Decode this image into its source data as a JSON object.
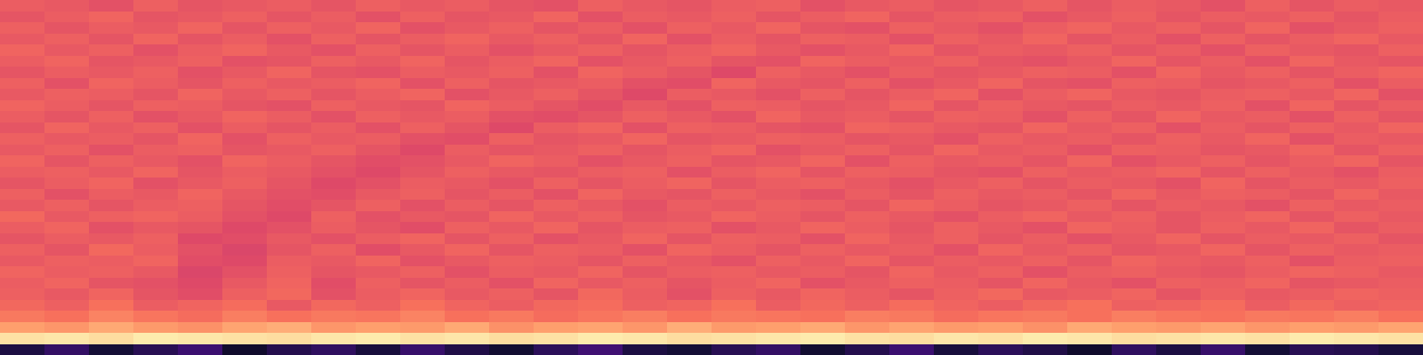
{
  "chart_data": {
    "type": "heatmap",
    "tick_labels": false,
    "zlim": [
      0,
      100
    ],
    "z": [
      [
        12,
        18,
        10,
        15,
        20,
        8,
        14,
        17,
        11,
        19,
        13,
        9,
        16,
        21,
        12,
        10,
        15,
        18,
        9,
        14,
        20,
        11,
        16,
        13,
        8,
        17,
        12,
        19,
        10,
        15,
        14,
        11
      ],
      [
        94,
        95,
        93,
        96,
        95,
        94,
        93,
        95,
        96,
        94,
        95,
        93,
        94,
        96,
        95,
        93,
        94,
        95,
        96,
        94,
        93,
        95,
        94,
        96,
        95,
        93,
        94,
        95,
        94,
        96,
        95,
        94
      ],
      [
        80,
        78,
        82,
        79,
        77,
        81,
        83,
        78,
        80,
        79,
        82,
        77,
        80,
        81,
        78,
        83,
        79,
        80,
        82,
        78,
        81,
        79,
        80,
        77,
        82,
        80,
        79,
        81,
        78,
        80,
        79,
        81
      ],
      [
        72,
        70,
        74,
        71,
        69,
        73,
        70,
        72,
        71,
        74,
        70,
        72,
        69,
        71,
        73,
        70,
        72,
        71,
        70,
        73,
        72,
        69,
        71,
        72,
        70,
        73,
        71,
        70,
        72,
        71,
        73,
        70
      ],
      [
        68,
        66,
        70,
        65,
        67,
        69,
        64,
        68,
        66,
        70,
        67,
        65,
        68,
        69,
        66,
        67,
        70,
        65,
        68,
        66,
        69,
        67,
        65,
        68,
        70,
        66,
        67,
        69,
        65,
        68,
        66,
        67
      ],
      [
        66,
        64,
        67,
        63,
        61,
        66,
        68,
        62,
        65,
        67,
        64,
        66,
        63,
        68,
        65,
        62,
        66,
        64,
        67,
        65,
        63,
        66,
        68,
        64,
        65,
        67,
        63,
        66,
        64,
        65,
        67,
        66
      ],
      [
        65,
        67,
        63,
        62,
        60,
        64,
        67,
        61,
        66,
        63,
        65,
        62,
        67,
        64,
        66,
        63,
        65,
        67,
        62,
        64,
        66,
        65,
        63,
        67,
        64,
        62,
        66,
        65,
        67,
        63,
        64,
        65
      ],
      [
        67,
        65,
        66,
        64,
        59,
        62,
        66,
        63,
        64,
        66,
        62,
        65,
        64,
        67,
        63,
        65,
        66,
        64,
        65,
        63,
        67,
        64,
        66,
        62,
        65,
        66,
        64,
        63,
        65,
        67,
        66,
        64
      ],
      [
        64,
        66,
        65,
        67,
        61,
        60,
        65,
        64,
        67,
        62,
        64,
        66,
        65,
        63,
        66,
        64,
        62,
        66,
        64,
        67,
        63,
        65,
        64,
        66,
        63,
        67,
        65,
        64,
        66,
        62,
        65,
        66
      ],
      [
        66,
        63,
        68,
        65,
        62,
        59,
        63,
        66,
        61,
        64,
        67,
        63,
        66,
        65,
        62,
        67,
        65,
        63,
        66,
        64,
        65,
        62,
        67,
        64,
        66,
        63,
        64,
        67,
        63,
        66,
        64,
        65
      ],
      [
        63,
        65,
        64,
        66,
        60,
        61,
        64,
        62,
        65,
        67,
        63,
        66,
        62,
        64,
        67,
        63,
        66,
        65,
        62,
        67,
        64,
        66,
        63,
        65,
        62,
        64,
        67,
        63,
        65,
        64,
        66,
        63
      ],
      [
        65,
        67,
        62,
        64,
        63,
        60,
        62,
        65,
        63,
        61,
        66,
        64,
        67,
        63,
        65,
        66,
        62,
        64,
        67,
        65,
        63,
        66,
        64,
        62,
        67,
        65,
        63,
        66,
        64,
        67,
        63,
        65
      ],
      [
        68,
        64,
        66,
        67,
        65,
        62,
        60,
        66,
        62,
        64,
        63,
        67,
        64,
        66,
        63,
        64,
        67,
        65,
        63,
        66,
        64,
        62,
        65,
        67,
        64,
        66,
        63,
        65,
        67,
        63,
        66,
        64
      ],
      [
        64,
        66,
        63,
        65,
        66,
        63,
        61,
        63,
        66,
        62,
        65,
        63,
        66,
        64,
        62,
        65,
        64,
        66,
        65,
        63,
        67,
        65,
        63,
        64,
        66,
        63,
        65,
        64,
        62,
        66,
        64,
        65
      ],
      [
        66,
        62,
        65,
        64,
        67,
        64,
        62,
        61,
        64,
        66,
        63,
        65,
        62,
        67,
        64,
        63,
        66,
        64,
        62,
        65,
        63,
        66,
        64,
        65,
        63,
        67,
        64,
        66,
        65,
        63,
        67,
        64
      ],
      [
        63,
        65,
        67,
        62,
        64,
        66,
        63,
        60,
        62,
        65,
        64,
        62,
        66,
        63,
        65,
        67,
        63,
        65,
        66,
        64,
        62,
        64,
        66,
        63,
        65,
        64,
        62,
        67,
        63,
        65,
        64,
        66
      ],
      [
        65,
        66,
        64,
        67,
        63,
        65,
        64,
        62,
        60,
        63,
        66,
        64,
        63,
        65,
        66,
        62,
        65,
        67,
        63,
        66,
        65,
        63,
        62,
        66,
        64,
        65,
        67,
        63,
        66,
        64,
        62,
        65
      ],
      [
        67,
        63,
        66,
        64,
        62,
        67,
        65,
        63,
        61,
        62,
        64,
        67,
        65,
        62,
        64,
        66,
        63,
        64,
        67,
        62,
        66,
        64,
        65,
        63,
        67,
        62,
        64,
        66,
        63,
        65,
        67,
        63
      ],
      [
        64,
        66,
        62,
        65,
        66,
        63,
        64,
        66,
        63,
        60,
        65,
        63,
        64,
        66,
        63,
        65,
        67,
        62,
        64,
        66,
        63,
        67,
        64,
        65,
        62,
        66,
        65,
        63,
        64,
        67,
        63,
        66
      ],
      [
        66,
        64,
        65,
        63,
        67,
        62,
        66,
        64,
        65,
        62,
        61,
        66,
        63,
        64,
        67,
        63,
        64,
        66,
        65,
        63,
        64,
        62,
        66,
        64,
        65,
        63,
        66,
        64,
        67,
        62,
        65,
        64
      ],
      [
        63,
        67,
        64,
        66,
        62,
        65,
        63,
        65,
        62,
        66,
        63,
        60,
        65,
        67,
        62,
        66,
        65,
        63,
        62,
        67,
        66,
        64,
        63,
        67,
        64,
        66,
        62,
        65,
        63,
        66,
        64,
        67
      ],
      [
        65,
        63,
        66,
        62,
        64,
        67,
        65,
        62,
        66,
        64,
        65,
        62,
        61,
        63,
        66,
        64,
        62,
        67,
        64,
        65,
        63,
        66,
        65,
        62,
        66,
        63,
        67,
        64,
        65,
        62,
        66,
        63
      ],
      [
        67,
        65,
        63,
        66,
        65,
        63,
        62,
        66,
        64,
        63,
        67,
        65,
        63,
        61,
        64,
        62,
        66,
        65,
        63,
        64,
        67,
        63,
        66,
        64,
        63,
        65,
        64,
        66,
        62,
        67,
        63,
        65
      ],
      [
        64,
        66,
        65,
        63,
        67,
        64,
        66,
        63,
        65,
        67,
        62,
        64,
        66,
        63,
        60,
        65,
        64,
        62,
        66,
        63,
        65,
        67,
        62,
        65,
        67,
        64,
        63,
        65,
        66,
        64,
        67,
        62
      ],
      [
        66,
        62,
        67,
        65,
        63,
        66,
        64,
        65,
        67,
        62,
        66,
        63,
        64,
        65,
        62,
        61,
        67,
        64,
        63,
        66,
        62,
        64,
        67,
        63,
        62,
        66,
        65,
        63,
        64,
        66,
        62,
        65
      ],
      [
        63,
        65,
        64,
        66,
        62,
        64,
        67,
        63,
        62,
        65,
        64,
        66,
        62,
        67,
        65,
        63,
        60,
        66,
        64,
        62,
        65,
        63,
        64,
        66,
        65,
        62,
        67,
        64,
        66,
        63,
        65,
        67
      ],
      [
        65,
        67,
        63,
        64,
        66,
        62,
        63,
        66,
        64,
        67,
        63,
        65,
        67,
        62,
        64,
        66,
        63,
        62,
        67,
        65,
        64,
        66,
        63,
        62,
        64,
        67,
        63,
        65,
        62,
        67,
        64,
        63
      ],
      [
        67,
        64,
        66,
        62,
        65,
        67,
        64,
        62,
        66,
        63,
        65,
        62,
        64,
        66,
        63,
        65,
        67,
        64,
        62,
        64,
        67,
        63,
        65,
        64,
        66,
        63,
        65,
        62,
        66,
        64,
        63,
        66
      ],
      [
        64,
        66,
        63,
        67,
        63,
        65,
        62,
        66,
        63,
        65,
        67,
        64,
        66,
        63,
        67,
        62,
        65,
        63,
        66,
        65,
        62,
        66,
        64,
        67,
        63,
        65,
        62,
        66,
        63,
        65,
        67,
        64
      ],
      [
        66,
        63,
        65,
        64,
        67,
        63,
        66,
        64,
        67,
        62,
        64,
        66,
        63,
        65,
        62,
        66,
        64,
        67,
        63,
        62,
        66,
        64,
        62,
        65,
        67,
        64,
        66,
        63,
        67,
        62,
        64,
        66
      ],
      [
        63,
        65,
        67,
        63,
        64,
        66,
        63,
        65,
        62,
        66,
        63,
        64,
        67,
        62,
        65,
        64,
        66,
        63,
        65,
        67,
        63,
        65,
        66,
        62,
        64,
        66,
        63,
        65,
        64,
        66,
        63,
        65
      ],
      [
        65,
        64,
        62,
        66,
        63,
        64,
        65,
        63,
        66,
        64,
        65,
        63,
        62,
        66,
        64,
        63,
        65,
        66,
        62,
        64,
        65,
        63,
        64,
        66,
        63,
        65,
        64,
        62,
        66,
        63,
        65,
        64
      ]
    ]
  }
}
